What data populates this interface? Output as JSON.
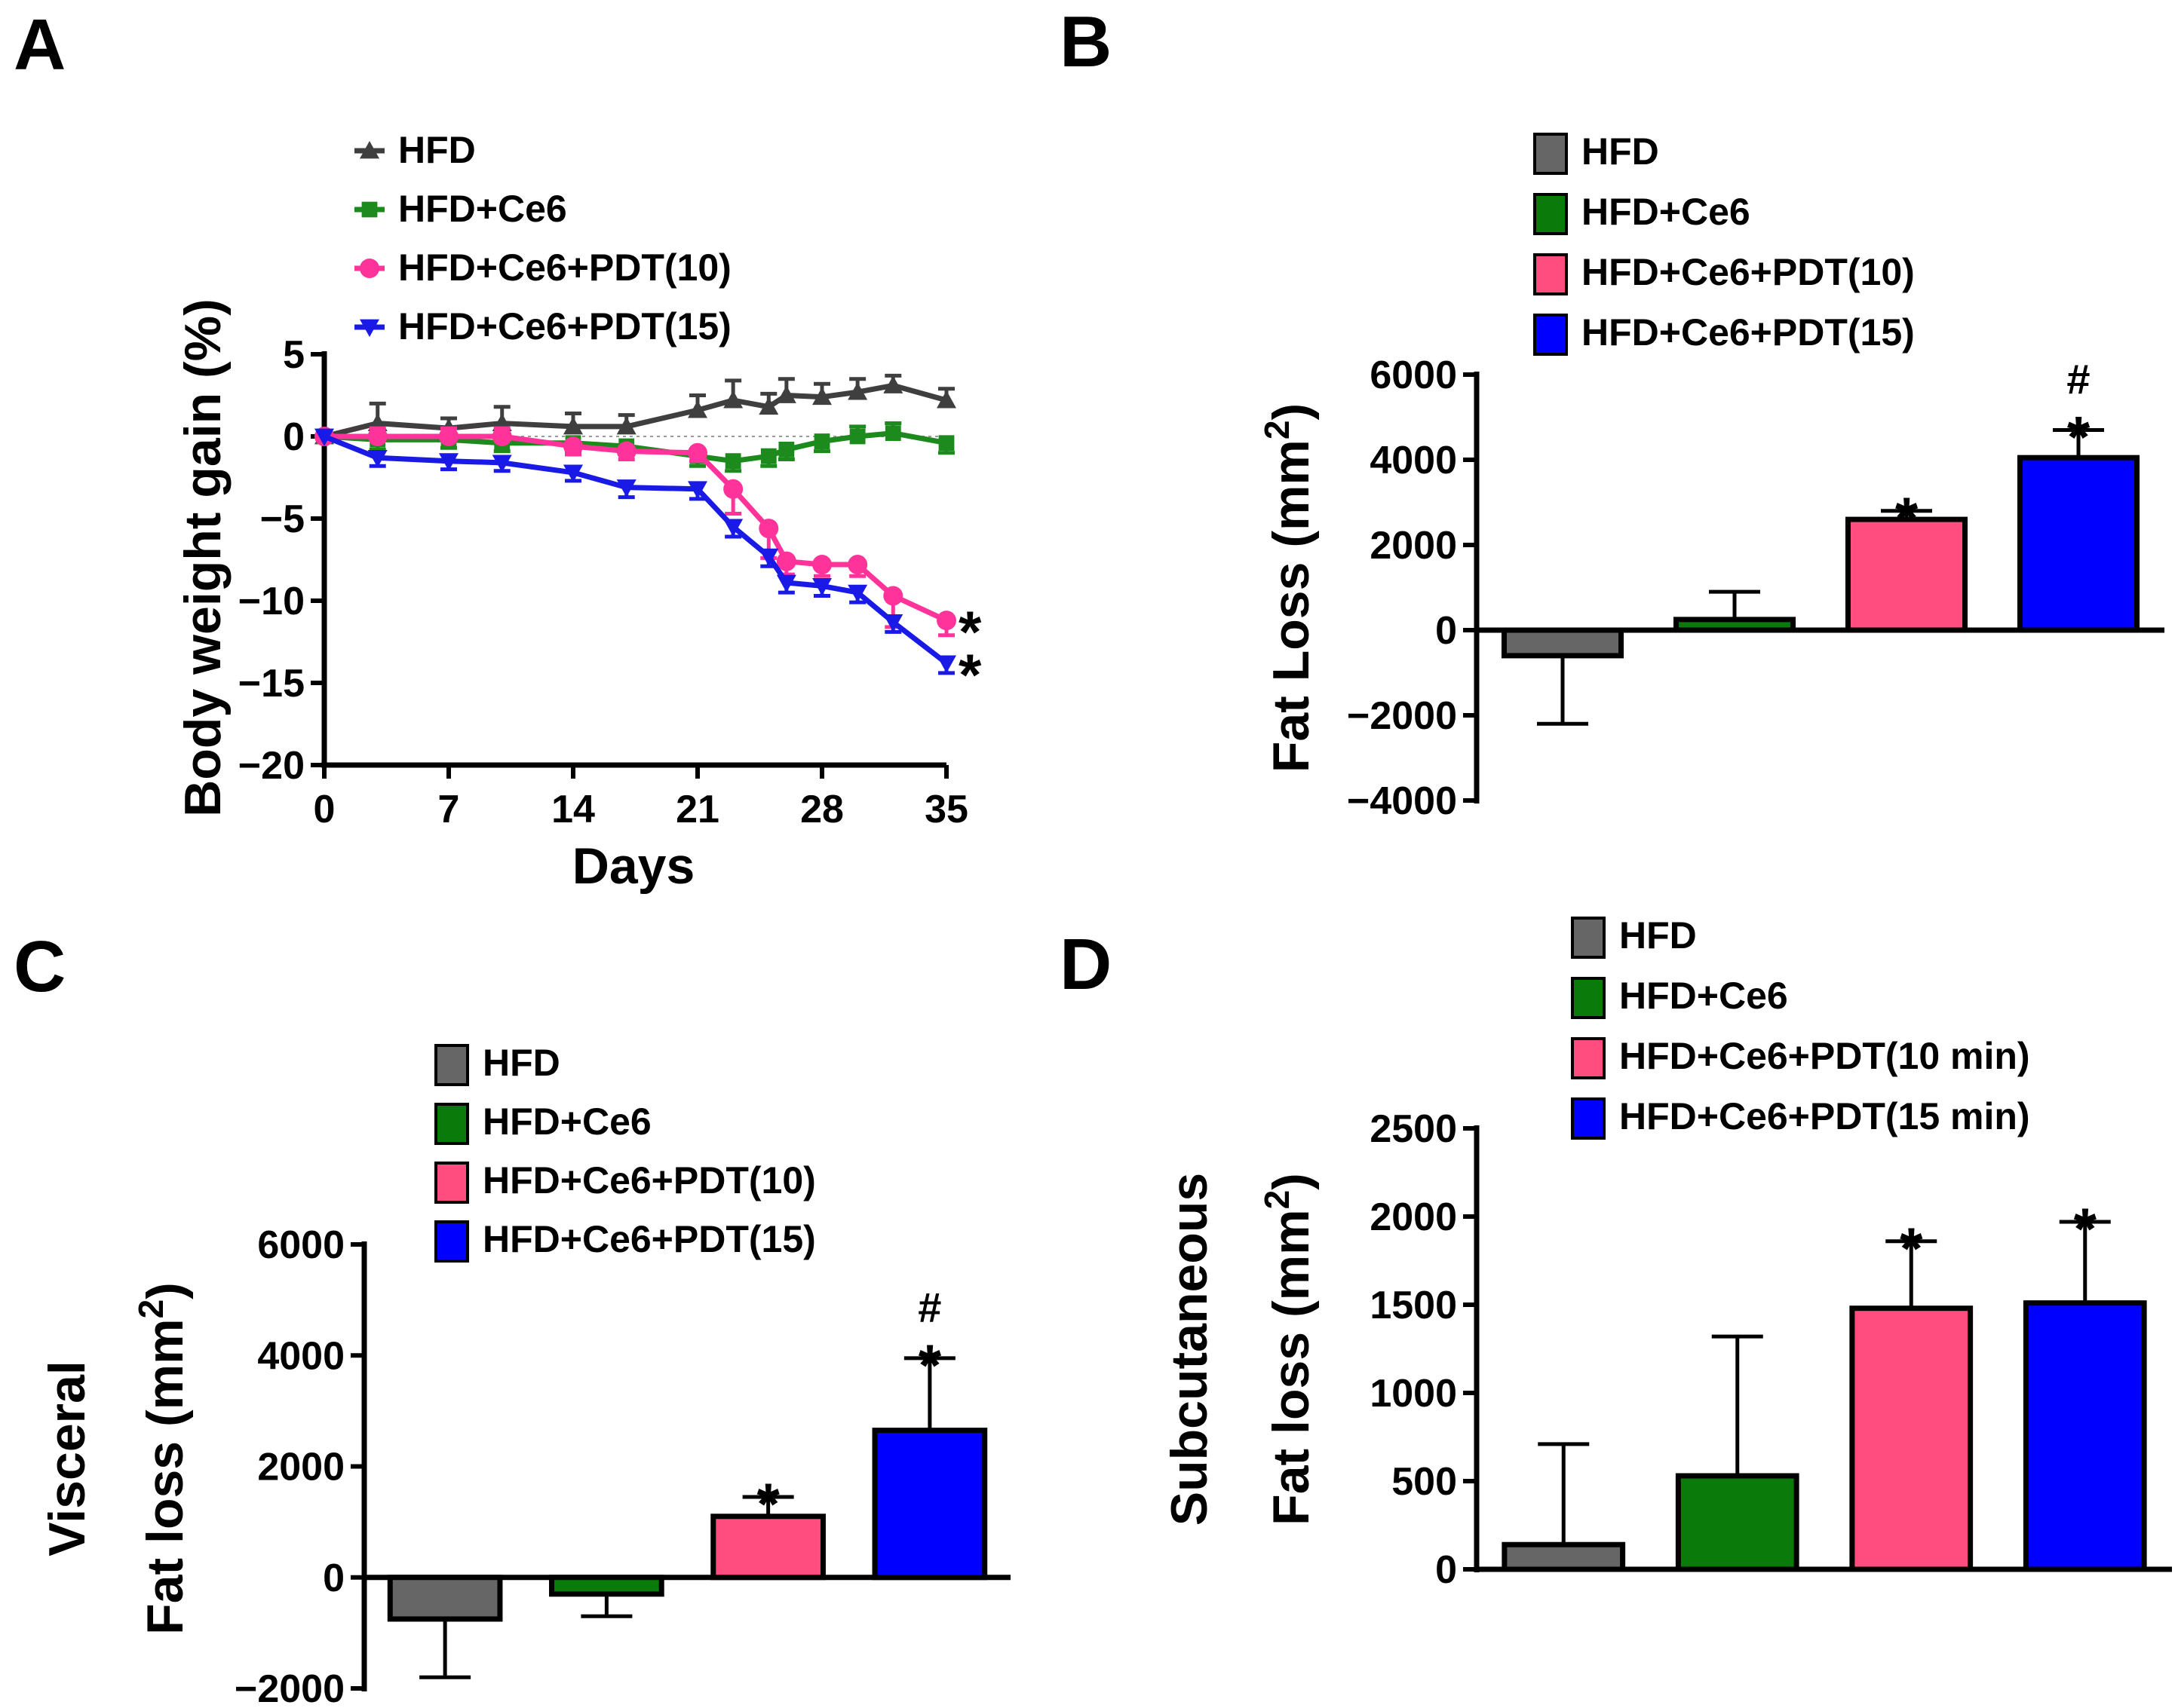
{
  "chart_data": [
    {
      "panel": "A",
      "type": "line",
      "xlabel": "Days",
      "ylabel": "Body weight gain (%)",
      "xlim": [
        0,
        35
      ],
      "ylim": [
        -20,
        5
      ],
      "xticks": [
        0,
        7,
        14,
        21,
        28,
        35
      ],
      "yticks": [
        5,
        0,
        -5,
        -10,
        -15,
        -20
      ],
      "ytick_labels": [
        "5",
        "0",
        "−5",
        "−10",
        "−15",
        "−20"
      ],
      "legend": [
        "HFD",
        "HFD+Ce6",
        "HFD+Ce6+PDT(10)",
        "HFD+Ce6+PDT(15)"
      ],
      "x": [
        0,
        3,
        7,
        10,
        14,
        17,
        21,
        23,
        25,
        26,
        28,
        30,
        32,
        35
      ],
      "series": [
        {
          "name": "HFD",
          "color": "#3f3f3f",
          "marker": "triangle-up",
          "values": [
            0,
            0.8,
            0.5,
            0.8,
            0.6,
            0.6,
            1.6,
            2.2,
            1.8,
            2.5,
            2.4,
            2.7,
            3.1,
            2.2
          ],
          "err": [
            0,
            1.2,
            0.6,
            1.0,
            0.8,
            0.7,
            0.9,
            1.2,
            0.8,
            1.0,
            0.8,
            0.8,
            0.6,
            0.7
          ]
        },
        {
          "name": "HFD+Ce6",
          "color": "#1c8a1c",
          "marker": "square",
          "values": [
            0,
            -0.2,
            -0.2,
            -0.4,
            -0.4,
            -0.6,
            -1.2,
            -1.5,
            -1.2,
            -0.8,
            -0.3,
            0,
            0.2,
            -0.4
          ],
          "err": [
            0,
            0.6,
            0.5,
            0.5,
            0.6,
            0.5,
            0.6,
            0.6,
            0.6,
            0.6,
            0.6,
            0.6,
            0.6,
            0.6
          ]
        },
        {
          "name": "HFD+Ce6+PDT(10)",
          "color": "#ff3399",
          "marker": "circle",
          "values": [
            0,
            0,
            0,
            0,
            -0.6,
            -0.9,
            -1.0,
            -3.2,
            -5.6,
            -7.6,
            -7.8,
            -7.8,
            -9.7,
            -11.2
          ],
          "err": [
            0,
            0.5,
            0.5,
            0.5,
            0.5,
            0.5,
            0.5,
            1.5,
            1.8,
            0.8,
            0.7,
            0.7,
            1.9,
            0.9
          ]
        },
        {
          "name": "HFD+Ce6+PDT(15)",
          "color": "#1a1ae6",
          "marker": "triangle-down",
          "values": [
            0,
            -1.3,
            -1.5,
            -1.6,
            -2.2,
            -3.1,
            -3.2,
            -5.5,
            -7.3,
            -8.9,
            -9.1,
            -9.5,
            -11.3,
            -13.8
          ],
          "err": [
            0,
            0.5,
            0.5,
            0.5,
            0.5,
            0.6,
            0.6,
            0.6,
            0.6,
            0.6,
            0.6,
            0.6,
            0.6,
            0.6
          ]
        }
      ],
      "annotations": [
        {
          "series": "HFD+Ce6+PDT(10)",
          "text": "*"
        },
        {
          "series": "HFD+Ce6+PDT(15)",
          "text": "*"
        }
      ]
    },
    {
      "panel": "B",
      "type": "bar",
      "xlabel": "",
      "ylabel": "Fat Loss (mm",
      "ylabel_sup": "2",
      "ylabel_close": ")",
      "ylim": [
        -4000,
        6000
      ],
      "yticks": [
        6000,
        4000,
        2000,
        0,
        -2000,
        -4000
      ],
      "ytick_labels": [
        "6000",
        "4000",
        "2000",
        "0",
        "−2000",
        "−4000"
      ],
      "categories": [
        "HFD",
        "HFD+Ce6",
        "HFD+Ce6+PDT(10)",
        "HFD+Ce6+PDT(15)"
      ],
      "values": [
        -600,
        250,
        2600,
        4050
      ],
      "err": [
        1600,
        650,
        200,
        650
      ],
      "colors": [
        "#666666",
        "#0a7a0a",
        "#ff4d7f",
        "#0000ff"
      ],
      "significance": [
        "",
        "",
        "*",
        "*"
      ],
      "significance_hash": [
        "",
        "",
        "",
        "#"
      ]
    },
    {
      "panel": "C",
      "type": "bar",
      "xlabel": "",
      "ylabel_line1": "Visceral",
      "ylabel": "Fat loss (mm",
      "ylabel_sup": "2",
      "ylabel_close": ")",
      "ylim": [
        -2000,
        6000
      ],
      "yticks": [
        6000,
        4000,
        2000,
        0,
        -2000
      ],
      "ytick_labels": [
        "6000",
        "4000",
        "2000",
        "0",
        "−2000"
      ],
      "categories": [
        "HFD",
        "HFD+Ce6",
        "HFD+Ce6+PDT(10)",
        "HFD+Ce6+PDT(15)"
      ],
      "values": [
        -750,
        -300,
        1100,
        2650
      ],
      "err": [
        1050,
        400,
        350,
        1300
      ],
      "colors": [
        "#666666",
        "#0a7a0a",
        "#ff4d7f",
        "#0000ff"
      ],
      "significance": [
        "",
        "",
        "*",
        "*"
      ],
      "significance_hash": [
        "",
        "",
        "",
        "#"
      ]
    },
    {
      "panel": "D",
      "type": "bar",
      "xlabel": "",
      "ylabel_line1": "Subcutaneous",
      "ylabel": "Fat loss (mm",
      "ylabel_sup": "2",
      "ylabel_close": ")",
      "ylim": [
        0,
        2500
      ],
      "yticks": [
        2500,
        2000,
        1500,
        1000,
        500,
        0
      ],
      "ytick_labels": [
        "2500",
        "2000",
        "1500",
        "1000",
        "500",
        "0"
      ],
      "categories": [
        "HFD",
        "HFD+Ce6",
        "HFD+Ce6+PDT(10 min)",
        "HFD+Ce6+PDT(15 min)"
      ],
      "values": [
        140,
        530,
        1480,
        1510
      ],
      "err": [
        570,
        790,
        380,
        460
      ],
      "colors": [
        "#666666",
        "#0a7a0a",
        "#ff4d7f",
        "#0000ff"
      ],
      "significance": [
        "",
        "",
        "*",
        "*"
      ],
      "significance_hash": [
        "",
        "",
        "",
        ""
      ]
    }
  ]
}
